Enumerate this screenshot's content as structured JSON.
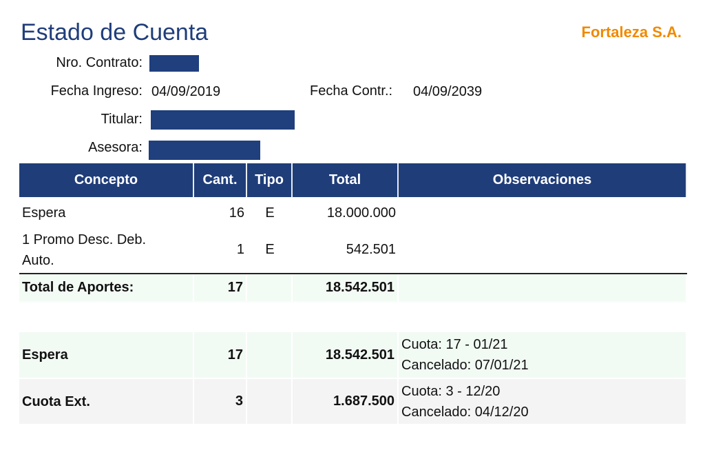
{
  "header": {
    "title": "Estado de Cuenta",
    "company": "Fortaleza S.A."
  },
  "fields": {
    "contract_label": "Nro. Contrato:",
    "entry_label": "Fecha Ingreso:",
    "entry_value": "04/09/2019",
    "contract_date_label": "Fecha Contr.:",
    "contract_date_value": "04/09/2039",
    "holder_label": "Titular:",
    "advisor_label": "Asesora:"
  },
  "table": {
    "columns": [
      "Concepto",
      "Cant.",
      "Tipo",
      "Total",
      "Observaciones"
    ],
    "rows": [
      {
        "concepto": "Espera",
        "cant": "16",
        "tipo": "E",
        "total": "18.000.000"
      },
      {
        "concepto": "1 Promo Desc. Deb. Auto.",
        "cant": "1",
        "tipo": "E",
        "total": "542.501"
      },
      {
        "concepto": "Total de Aportes:",
        "cant": "17",
        "total": "18.542.501"
      },
      {
        "concepto": "Espera",
        "cant": "17",
        "total": "18.542.501",
        "observaciones": [
          "Cuota: 17 - 01/21",
          "Cancelado: 07/01/21"
        ]
      },
      {
        "concepto": "Cuota Ext.",
        "cant": "3",
        "total": "1.687.500",
        "observaciones": [
          "Cuota: 3 - 12/20",
          "Cancelado: 04/12/20"
        ]
      }
    ]
  }
}
